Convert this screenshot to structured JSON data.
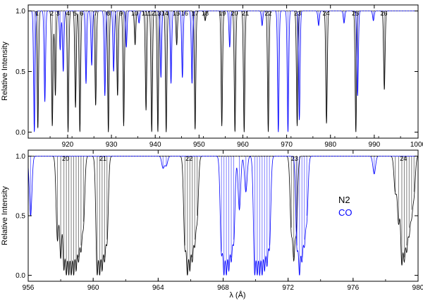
{
  "chart_data": [
    {
      "type": "line",
      "panel": "top",
      "ylabel": "Relative Intensity",
      "xlabel": "",
      "xlim": [
        911,
        1000
      ],
      "ylim": [
        -0.05,
        1.05
      ],
      "x_ticks": [
        920,
        930,
        940,
        950,
        960,
        970,
        980,
        990,
        1000
      ],
      "y_ticks": [
        0.0,
        0.5,
        1.0
      ],
      "band_labels": [
        "1",
        "2",
        "3",
        "4",
        "5",
        "6",
        "7",
        "8",
        "9",
        "10",
        "11",
        "12",
        "13",
        "14",
        "15",
        "16",
        "17",
        "18",
        "19",
        "20",
        "21",
        "22",
        "23",
        "24",
        "25",
        "26"
      ],
      "band_positions": [
        913.0,
        916.4,
        917.8,
        920.1,
        921.7,
        923.2,
        926.4,
        929.3,
        932.2,
        935.3,
        937.6,
        939.1,
        940.5,
        942.2,
        944.8,
        946.7,
        949.1,
        951.4,
        955.3,
        958.1,
        960.6,
        965.8,
        972.5,
        979.0,
        985.7,
        992.2
      ],
      "series": [
        {
          "name": "N2",
          "color": "#000000",
          "lines": [
            {
              "x": 913.2,
              "depth": 0.97
            },
            {
              "x": 916.5,
              "depth": 0.95
            },
            {
              "x": 917.2,
              "depth": 0.7
            },
            {
              "x": 920.1,
              "depth": 1.0
            },
            {
              "x": 921.8,
              "depth": 0.8
            },
            {
              "x": 922.8,
              "depth": 1.0
            },
            {
              "x": 926.4,
              "depth": 0.78
            },
            {
              "x": 929.3,
              "depth": 1.0
            },
            {
              "x": 931.4,
              "depth": 0.7
            },
            {
              "x": 932.8,
              "depth": 0.95
            },
            {
              "x": 935.4,
              "depth": 0.28
            },
            {
              "x": 937.9,
              "depth": 0.82
            },
            {
              "x": 939.2,
              "depth": 1.0
            },
            {
              "x": 940.6,
              "depth": 1.0
            },
            {
              "x": 942.5,
              "depth": 1.0
            },
            {
              "x": 944.9,
              "depth": 0.28
            },
            {
              "x": 949.1,
              "depth": 0.98
            },
            {
              "x": 951.4,
              "depth": 0.08
            },
            {
              "x": 955.2,
              "depth": 0.95
            },
            {
              "x": 958.2,
              "depth": 1.0
            },
            {
              "x": 960.3,
              "depth": 1.0
            },
            {
              "x": 965.8,
              "depth": 1.0
            },
            {
              "x": 972.4,
              "depth": 0.95
            },
            {
              "x": 979.1,
              "depth": 0.93
            },
            {
              "x": 985.8,
              "depth": 1.0
            },
            {
              "x": 992.3,
              "depth": 0.65
            }
          ]
        },
        {
          "name": "CO",
          "color": "#0000ff",
          "lines": [
            {
              "x": 912.4,
              "depth": 1.0
            },
            {
              "x": 914.8,
              "depth": 0.75
            },
            {
              "x": 918.3,
              "depth": 0.32
            },
            {
              "x": 919.0,
              "depth": 0.5
            },
            {
              "x": 924.2,
              "depth": 0.6
            },
            {
              "x": 925.5,
              "depth": 0.45
            },
            {
              "x": 928.5,
              "depth": 0.7
            },
            {
              "x": 930.5,
              "depth": 0.5
            },
            {
              "x": 933.4,
              "depth": 0.3
            },
            {
              "x": 936.3,
              "depth": 0.1
            },
            {
              "x": 941.3,
              "depth": 0.55
            },
            {
              "x": 943.6,
              "depth": 0.6
            },
            {
              "x": 946.2,
              "depth": 0.55
            },
            {
              "x": 948.4,
              "depth": 0.6
            },
            {
              "x": 957.0,
              "depth": 0.3
            },
            {
              "x": 964.4,
              "depth": 0.12
            },
            {
              "x": 968.1,
              "depth": 1.0
            },
            {
              "x": 970.3,
              "depth": 1.0
            },
            {
              "x": 972.9,
              "depth": 0.9
            },
            {
              "x": 977.3,
              "depth": 0.12
            },
            {
              "x": 983.1,
              "depth": 0.1
            },
            {
              "x": 986.2,
              "depth": 0.7
            },
            {
              "x": 989.8,
              "depth": 0.08
            }
          ]
        }
      ]
    },
    {
      "type": "line",
      "panel": "bottom",
      "ylabel": "Relative Intensity",
      "xlabel": "λ (Å)",
      "xlim": [
        956,
        980
      ],
      "ylim": [
        -0.05,
        1.05
      ],
      "x_ticks": [
        956,
        960,
        964,
        968,
        972,
        976,
        980
      ],
      "y_ticks": [
        0.0,
        0.5,
        1.0
      ],
      "band_labels": [
        "20",
        "21",
        "22",
        "23",
        "24"
      ],
      "band_positions": [
        958.3,
        960.6,
        965.9,
        972.4,
        979.1
      ],
      "legend": [
        "N2",
        "CO"
      ],
      "legend_position": "center-right",
      "series": [
        {
          "name": "N2",
          "color": "#000000",
          "lines": [
            {
              "x": 957.8,
              "depth": 0.7
            },
            {
              "x": 958.0,
              "depth": 0.85
            },
            {
              "x": 958.2,
              "depth": 0.95
            },
            {
              "x": 958.35,
              "depth": 1.0
            },
            {
              "x": 958.5,
              "depth": 1.0
            },
            {
              "x": 958.65,
              "depth": 1.0
            },
            {
              "x": 958.8,
              "depth": 1.0
            },
            {
              "x": 958.95,
              "depth": 0.95
            },
            {
              "x": 959.1,
              "depth": 0.85
            },
            {
              "x": 959.25,
              "depth": 0.75
            },
            {
              "x": 959.4,
              "depth": 0.55
            },
            {
              "x": 960.25,
              "depth": 1.0
            },
            {
              "x": 960.4,
              "depth": 1.0
            },
            {
              "x": 960.55,
              "depth": 0.95
            },
            {
              "x": 960.7,
              "depth": 0.85
            },
            {
              "x": 960.85,
              "depth": 0.7
            },
            {
              "x": 965.65,
              "depth": 0.75
            },
            {
              "x": 965.8,
              "depth": 1.0
            },
            {
              "x": 965.95,
              "depth": 0.95
            },
            {
              "x": 966.1,
              "depth": 0.85
            },
            {
              "x": 966.25,
              "depth": 0.7
            },
            {
              "x": 966.4,
              "depth": 0.5
            },
            {
              "x": 972.2,
              "depth": 0.6
            },
            {
              "x": 972.35,
              "depth": 0.85
            },
            {
              "x": 972.5,
              "depth": 0.6
            },
            {
              "x": 978.6,
              "depth": 0.3
            },
            {
              "x": 978.8,
              "depth": 0.55
            },
            {
              "x": 979.0,
              "depth": 0.9
            },
            {
              "x": 979.15,
              "depth": 0.85
            },
            {
              "x": 979.3,
              "depth": 0.75
            },
            {
              "x": 979.45,
              "depth": 0.6
            },
            {
              "x": 979.6,
              "depth": 0.45
            },
            {
              "x": 979.75,
              "depth": 0.3
            }
          ]
        },
        {
          "name": "CO",
          "color": "#0000ff",
          "lines": [
            {
              "x": 956.15,
              "depth": 0.5
            },
            {
              "x": 964.3,
              "depth": 0.1
            },
            {
              "x": 964.5,
              "depth": 0.08
            },
            {
              "x": 967.9,
              "depth": 0.8
            },
            {
              "x": 968.05,
              "depth": 1.0
            },
            {
              "x": 968.2,
              "depth": 1.0
            },
            {
              "x": 968.35,
              "depth": 0.95
            },
            {
              "x": 968.5,
              "depth": 0.85
            },
            {
              "x": 968.65,
              "depth": 0.7
            },
            {
              "x": 969.0,
              "depth": 0.45
            },
            {
              "x": 969.4,
              "depth": 0.3
            },
            {
              "x": 969.95,
              "depth": 1.0
            },
            {
              "x": 970.1,
              "depth": 1.0
            },
            {
              "x": 970.25,
              "depth": 1.0
            },
            {
              "x": 970.4,
              "depth": 1.0
            },
            {
              "x": 970.55,
              "depth": 0.95
            },
            {
              "x": 970.7,
              "depth": 0.9
            },
            {
              "x": 970.85,
              "depth": 0.75
            },
            {
              "x": 972.55,
              "depth": 0.75
            },
            {
              "x": 972.7,
              "depth": 1.0
            },
            {
              "x": 972.85,
              "depth": 0.85
            },
            {
              "x": 973.0,
              "depth": 0.7
            },
            {
              "x": 973.15,
              "depth": 0.5
            },
            {
              "x": 977.3,
              "depth": 0.15
            }
          ]
        }
      ]
    }
  ]
}
